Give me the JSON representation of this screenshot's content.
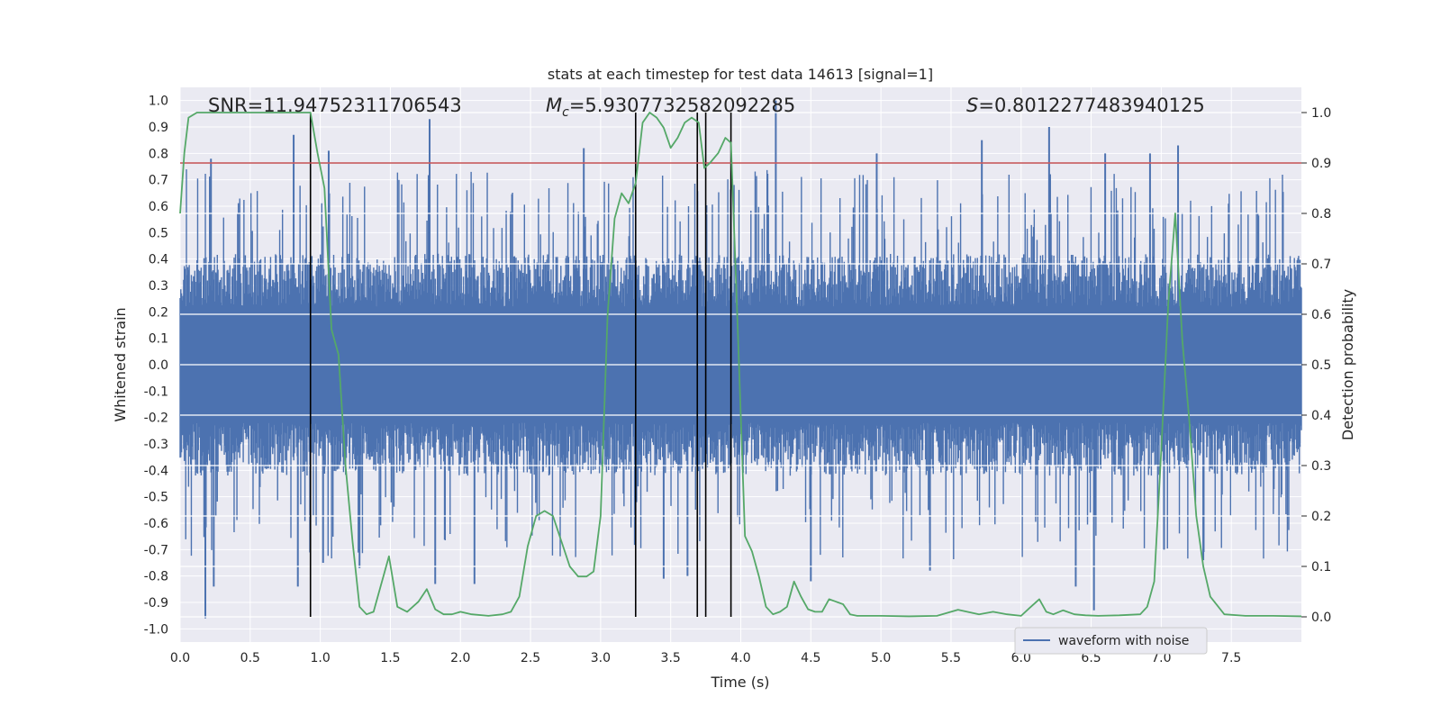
{
  "chart_data": {
    "type": "line",
    "title": "stats at each timestep for test data 14613 [signal=1]",
    "xlabel": "Time (s)",
    "ylabel_left": "Whitened strain",
    "ylabel_right": "Detection probability",
    "xlim": [
      0,
      8
    ],
    "ylim_left": [
      -1.05,
      1.05
    ],
    "ylim_right": [
      -0.05,
      1.05
    ],
    "x_ticks": [
      0.0,
      0.5,
      1.0,
      1.5,
      2.0,
      2.5,
      3.0,
      3.5,
      4.0,
      4.5,
      5.0,
      5.5,
      6.0,
      6.5,
      7.0,
      7.5
    ],
    "x_tick_labels": [
      "0.0",
      "0.5",
      "1.0",
      "1.5",
      "2.0",
      "2.5",
      "3.0",
      "3.5",
      "4.0",
      "4.5",
      "5.0",
      "5.5",
      "6.0",
      "6.5",
      "7.0",
      "7.5"
    ],
    "y_left_ticks": [
      1.0,
      0.9,
      0.8,
      0.7,
      0.6,
      0.5,
      0.4,
      0.3,
      0.2,
      0.1,
      0.0,
      -0.1,
      -0.2,
      -0.3,
      -0.4,
      -0.5,
      -0.6,
      -0.7,
      -0.8,
      -0.9,
      -1.0
    ],
    "y_left_tick_labels": [
      "1.0",
      "0.9",
      "0.8",
      "0.7",
      "0.6",
      "0.5",
      "0.4",
      "0.3",
      "0.2",
      "0.1",
      "0.0",
      "-0.1",
      "-0.2",
      "-0.3",
      "-0.4",
      "-0.5",
      "-0.6",
      "-0.7",
      "-0.8",
      "-0.9",
      "-1.0"
    ],
    "y_right_ticks": [
      0.0,
      0.1,
      0.2,
      0.3,
      0.4,
      0.5,
      0.6,
      0.7,
      0.8,
      0.9,
      1.0
    ],
    "y_right_tick_labels": [
      "0.0",
      "0.1",
      "0.2",
      "0.3",
      "0.4",
      "0.5",
      "0.6",
      "0.7",
      "0.8",
      "0.9",
      "1.0"
    ],
    "threshold": 0.9,
    "threshold_axis": "right",
    "event_markers_x": [
      0.93,
      3.25,
      3.69,
      3.75,
      3.93
    ],
    "event_marker_range_right": [
      0.0,
      1.0
    ],
    "annotations": {
      "snr_label": "SNR=11.94752311706543",
      "mc_prefix": "M",
      "mc_sub": "c",
      "mc_value": "=5.9307732582092285",
      "s_prefix": "S",
      "s_value": "=0.8012277483940125"
    },
    "legend": {
      "entries": [
        "waveform with noise"
      ],
      "location": "lower-right"
    },
    "series": [
      {
        "name": "waveform with noise",
        "axis": "left",
        "style": "noise",
        "x_range": [
          0,
          8
        ],
        "typical_amplitude": 0.4,
        "peaks": [
          {
            "x": 0.18,
            "y": -0.96
          },
          {
            "x": 0.22,
            "y": 0.78
          },
          {
            "x": 0.24,
            "y": -0.84
          },
          {
            "x": 0.81,
            "y": 0.87
          },
          {
            "x": 0.84,
            "y": -0.84
          },
          {
            "x": 1.02,
            "y": -0.75
          },
          {
            "x": 1.06,
            "y": 0.81
          },
          {
            "x": 1.28,
            "y": -0.77
          },
          {
            "x": 1.78,
            "y": 0.93
          },
          {
            "x": 1.82,
            "y": -0.83
          },
          {
            "x": 2.1,
            "y": -0.83
          },
          {
            "x": 2.88,
            "y": 0.82
          },
          {
            "x": 3.45,
            "y": -0.81
          },
          {
            "x": 3.62,
            "y": -0.8
          },
          {
            "x": 4.25,
            "y": 1.0
          },
          {
            "x": 4.5,
            "y": -0.82
          },
          {
            "x": 4.97,
            "y": 0.8
          },
          {
            "x": 5.35,
            "y": -0.78
          },
          {
            "x": 5.72,
            "y": 0.85
          },
          {
            "x": 6.2,
            "y": 0.9
          },
          {
            "x": 6.39,
            "y": -0.84
          },
          {
            "x": 6.52,
            "y": -0.93
          },
          {
            "x": 6.6,
            "y": 0.8
          },
          {
            "x": 6.92,
            "y": 0.8
          },
          {
            "x": 7.02,
            "y": -0.7
          },
          {
            "x": 7.12,
            "y": 0.83
          },
          {
            "x": 7.3,
            "y": -0.74
          }
        ]
      },
      {
        "name": "detection probability",
        "axis": "right",
        "color": "#55a868",
        "x": [
          0.0,
          0.03,
          0.06,
          0.12,
          0.2,
          0.4,
          0.6,
          0.8,
          0.9,
          0.93,
          0.98,
          1.03,
          1.08,
          1.13,
          1.18,
          1.23,
          1.28,
          1.33,
          1.38,
          1.43,
          1.49,
          1.55,
          1.62,
          1.7,
          1.76,
          1.82,
          1.88,
          1.94,
          2.0,
          2.08,
          2.2,
          2.3,
          2.36,
          2.42,
          2.48,
          2.54,
          2.6,
          2.66,
          2.72,
          2.78,
          2.84,
          2.9,
          2.95,
          3.0,
          3.05,
          3.1,
          3.15,
          3.2,
          3.25,
          3.3,
          3.35,
          3.4,
          3.45,
          3.5,
          3.55,
          3.6,
          3.65,
          3.7,
          3.74,
          3.78,
          3.84,
          3.89,
          3.93,
          3.98,
          4.03,
          4.08,
          4.13,
          4.18,
          4.23,
          4.28,
          4.33,
          4.38,
          4.43,
          4.48,
          4.53,
          4.58,
          4.63,
          4.68,
          4.73,
          4.78,
          4.83,
          4.9,
          5.0,
          5.2,
          5.4,
          5.55,
          5.7,
          5.8,
          5.9,
          6.0,
          6.07,
          6.13,
          6.18,
          6.23,
          6.3,
          6.38,
          6.46,
          6.55,
          6.7,
          6.85,
          6.9,
          6.95,
          7.0,
          7.05,
          7.1,
          7.15,
          7.2,
          7.25,
          7.3,
          7.35,
          7.45,
          7.6,
          7.8,
          8.0
        ],
        "y": [
          0.8,
          0.92,
          0.99,
          1.0,
          1.0,
          1.0,
          1.0,
          1.0,
          1.0,
          1.0,
          0.92,
          0.85,
          0.57,
          0.52,
          0.3,
          0.15,
          0.02,
          0.005,
          0.01,
          0.06,
          0.12,
          0.02,
          0.01,
          0.03,
          0.055,
          0.015,
          0.005,
          0.005,
          0.01,
          0.005,
          0.002,
          0.005,
          0.01,
          0.04,
          0.14,
          0.2,
          0.21,
          0.2,
          0.15,
          0.1,
          0.08,
          0.08,
          0.09,
          0.2,
          0.6,
          0.79,
          0.84,
          0.82,
          0.86,
          0.98,
          1.0,
          0.99,
          0.97,
          0.93,
          0.95,
          0.98,
          0.99,
          0.98,
          0.89,
          0.9,
          0.92,
          0.95,
          0.94,
          0.56,
          0.16,
          0.13,
          0.08,
          0.02,
          0.005,
          0.01,
          0.02,
          0.07,
          0.04,
          0.015,
          0.01,
          0.01,
          0.035,
          0.03,
          0.025,
          0.005,
          0.002,
          0.002,
          0.002,
          0.001,
          0.002,
          0.014,
          0.005,
          0.01,
          0.005,
          0.002,
          0.02,
          0.035,
          0.01,
          0.005,
          0.013,
          0.005,
          0.003,
          0.002,
          0.003,
          0.005,
          0.02,
          0.07,
          0.33,
          0.62,
          0.8,
          0.55,
          0.39,
          0.2,
          0.1,
          0.04,
          0.005,
          0.002,
          0.002,
          0.001
        ]
      }
    ]
  }
}
